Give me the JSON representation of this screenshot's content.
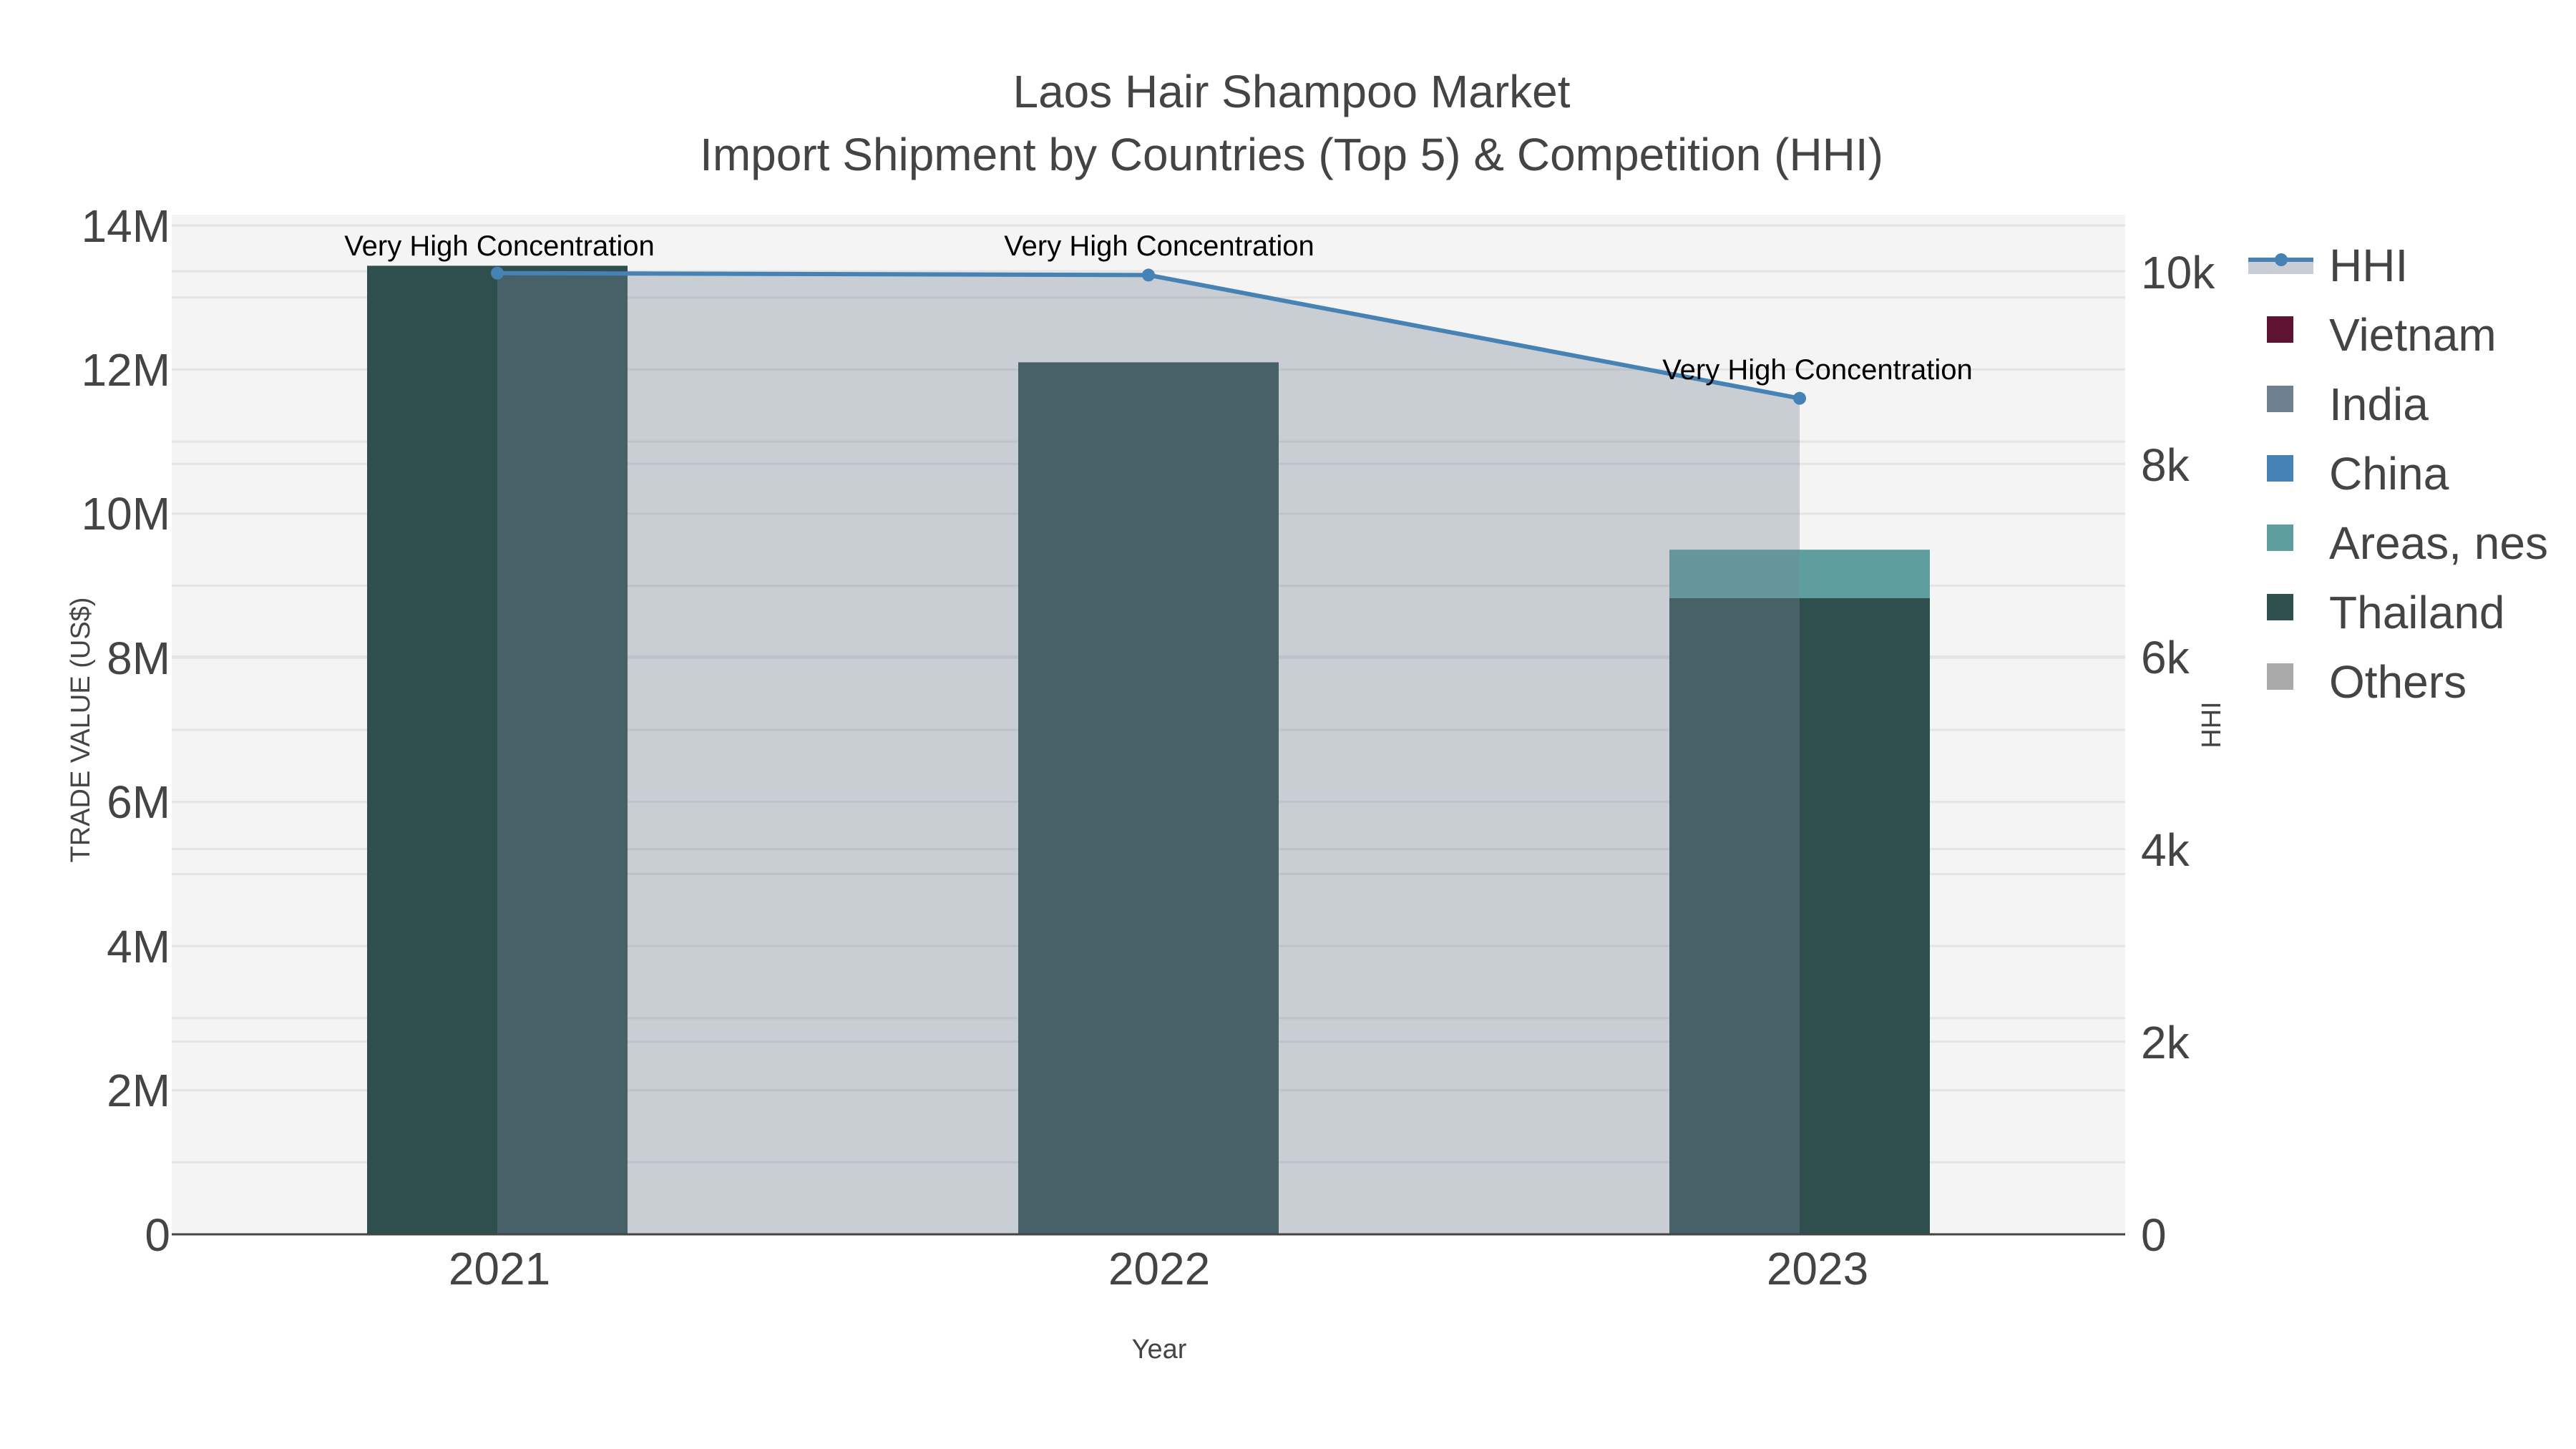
{
  "title": {
    "line1": "Laos Hair Shampoo Market",
    "line2": "Import Shipment by Countries (Top 5) & Competition (HHI)"
  },
  "axes": {
    "x_title": "Year",
    "y_left_title": "TRADE VALUE (US$)",
    "y_right_title": "HHI",
    "x_ticks": [
      "2021",
      "2022",
      "2023"
    ],
    "y_left_ticks": [
      "0",
      "2M",
      "4M",
      "6M",
      "8M",
      "10M",
      "12M",
      "14M"
    ],
    "y_right_ticks": [
      "0",
      "2k",
      "4k",
      "6k",
      "8k",
      "10k"
    ]
  },
  "annotations": [
    "Very High Concentration",
    "Very High Concentration",
    "Very High Concentration"
  ],
  "legend": [
    {
      "label": "HHI",
      "color": "#4682B4",
      "type": "line"
    },
    {
      "label": "Vietnam",
      "color": "#5E1234",
      "type": "square"
    },
    {
      "label": "India",
      "color": "#708090",
      "type": "square"
    },
    {
      "label": "China",
      "color": "#4682B4",
      "type": "square"
    },
    {
      "label": "Areas, nes",
      "color": "#5F9EA0",
      "type": "square"
    },
    {
      "label": "Thailand",
      "color": "#2F4F4F",
      "type": "square"
    },
    {
      "label": "Others",
      "color": "#AAAAAA",
      "type": "square"
    }
  ],
  "colors": {
    "plot_bg": "#F4F4F4",
    "grid": "#E4E4E4",
    "hhi_line": "#4682B4",
    "hhi_fill": "rgba(119,132,153,0.35)",
    "thailand": "#2F4F4F",
    "areas_nes": "#5F9EA0"
  },
  "chart_data": {
    "type": "bar",
    "title": "Laos Hair Shampoo Market — Import Shipment by Countries (Top 5) & Competition (HHI)",
    "xlabel": "Year",
    "ylabel": "TRADE VALUE (US$)",
    "y2label": "HHI",
    "categories": [
      "2021",
      "2022",
      "2023"
    ],
    "stacked": true,
    "ylim": [
      0,
      14200000
    ],
    "y2lim": [
      0,
      10590
    ],
    "grid": true,
    "legend_position": "right",
    "series": [
      {
        "name": "Vietnam",
        "type": "bar",
        "color": "#5E1234",
        "values": [
          0,
          0,
          0
        ]
      },
      {
        "name": "India",
        "type": "bar",
        "color": "#708090",
        "values": [
          0,
          0,
          0
        ]
      },
      {
        "name": "China",
        "type": "bar",
        "color": "#4682B4",
        "values": [
          0,
          0,
          0
        ]
      },
      {
        "name": "Areas, nes",
        "type": "bar",
        "color": "#5F9EA0",
        "values": [
          0,
          0,
          670000
        ]
      },
      {
        "name": "Thailand",
        "type": "bar",
        "color": "#2F4F4F",
        "values": [
          13440000,
          12100000,
          8830000
        ]
      },
      {
        "name": "Others",
        "type": "bar",
        "color": "#AAAAAA",
        "values": [
          0,
          0,
          0
        ]
      },
      {
        "name": "HHI",
        "type": "line+area",
        "axis": "right",
        "color": "#4682B4",
        "values": [
          9980,
          9960,
          8680
        ]
      }
    ],
    "annotations": [
      {
        "x": "2021",
        "text": "Very High Concentration"
      },
      {
        "x": "2022",
        "text": "Very High Concentration"
      },
      {
        "x": "2023",
        "text": "Very High Concentration"
      }
    ]
  }
}
